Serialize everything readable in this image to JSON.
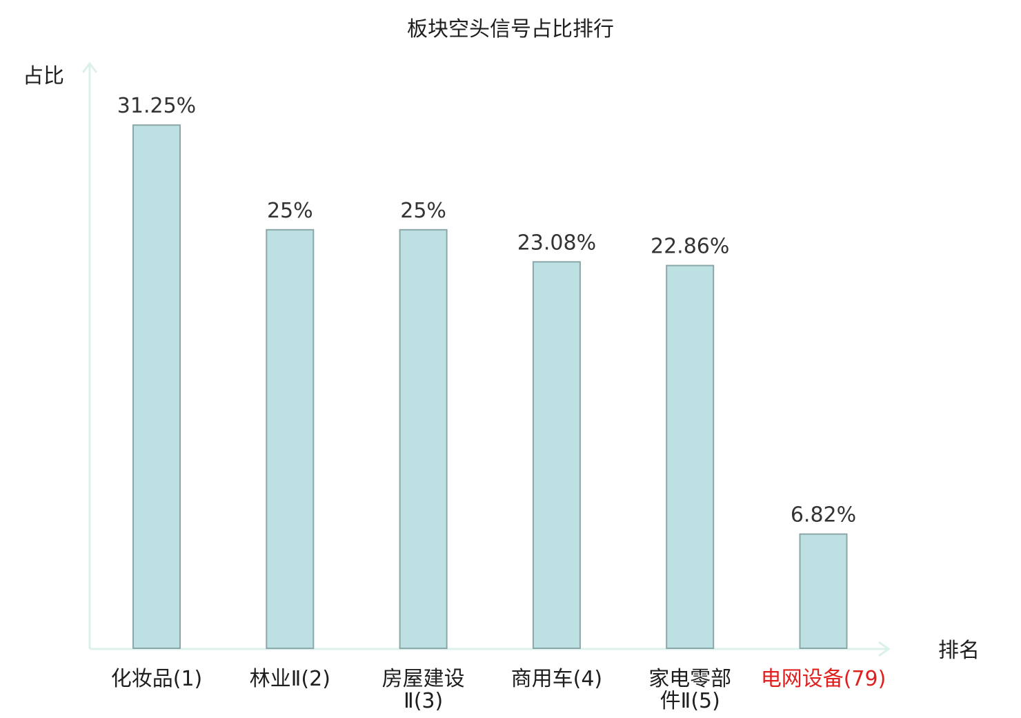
{
  "chart_data": {
    "type": "bar",
    "title": "板块空头信号占比排行",
    "ylabel": "占比",
    "xlabel": "排名",
    "ylim": [
      0,
      35
    ],
    "grid": false,
    "categories": [
      {
        "name_lines": [
          "化妆品(1)"
        ],
        "name": "化妆品",
        "rank": "(1)",
        "value": 31.25,
        "value_label": "31.25%",
        "highlight": false
      },
      {
        "name_lines": [
          "林业Ⅱ(2)"
        ],
        "name": "林业Ⅱ",
        "rank": "(2)",
        "value": 25,
        "value_label": "25%",
        "highlight": false
      },
      {
        "name_lines": [
          "房屋建设",
          "Ⅱ(3)"
        ],
        "name": "房屋建设Ⅱ",
        "rank": "(3)",
        "value": 25,
        "value_label": "25%",
        "highlight": false
      },
      {
        "name_lines": [
          "商用车(4)"
        ],
        "name": "商用车",
        "rank": "(4)",
        "value": 23.08,
        "value_label": "23.08%",
        "highlight": false
      },
      {
        "name_lines": [
          "家电零部",
          "件Ⅱ(5)"
        ],
        "name": "家电零部件Ⅱ",
        "rank": "(5)",
        "value": 22.86,
        "value_label": "22.86%",
        "highlight": false
      },
      {
        "name_lines": [
          "电网设备(79)"
        ],
        "name": "电网设备",
        "rank": "(79)",
        "value": 6.82,
        "value_label": "6.82%",
        "highlight": true
      }
    ],
    "colors": {
      "bar_fill": "#bde1e3",
      "bar_stroke": "#8aa6a8",
      "axis": "#dcf0ec",
      "highlight_text": "#e0201f"
    }
  }
}
